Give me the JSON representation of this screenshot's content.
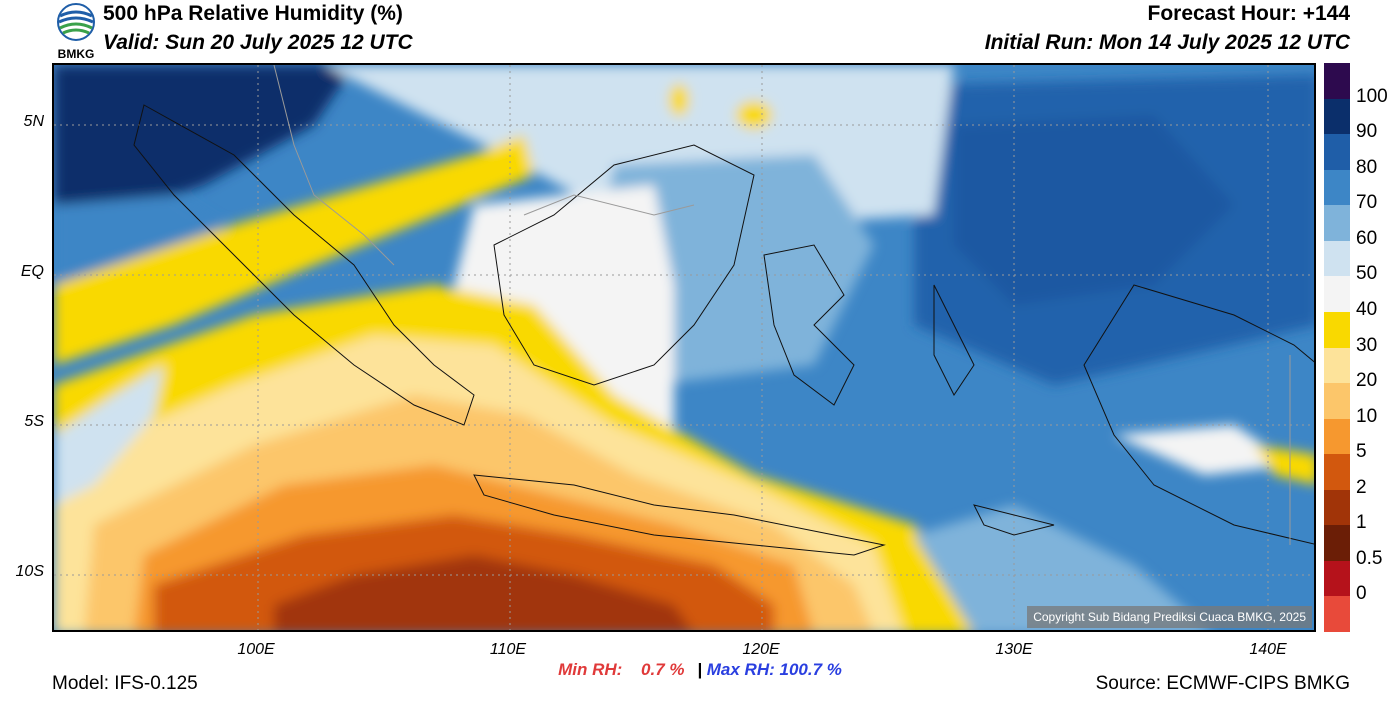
{
  "header": {
    "title": "500 hPa Relative Humidity (%)",
    "valid": "Valid: Sun 20 July 2025 12 UTC",
    "forecast_hour": "Forecast Hour: +144",
    "initial_run": "Initial Run: Mon 14 July 2025 12 UTC",
    "logo_text": "BMKG"
  },
  "map": {
    "lat_labels": [
      "5N",
      "EQ",
      "5S",
      "10S"
    ],
    "lon_labels": [
      "100E",
      "110E",
      "120E",
      "130E",
      "140E"
    ],
    "copyright": "Copyright Sub Bidang Prediksi Cuaca BMKG, 2025"
  },
  "colorbar": {
    "labels": [
      "100",
      "90",
      "80",
      "70",
      "60",
      "50",
      "40",
      "30",
      "20",
      "10",
      "5",
      "2",
      "1",
      "0.5",
      "0"
    ],
    "colors": [
      "#2d0a4e",
      "#0b2f6b",
      "#1f5ea8",
      "#3d86c6",
      "#7fb3da",
      "#cfe2f0",
      "#f4f4f4",
      "#f9d900",
      "#fde39a",
      "#fcc66a",
      "#f6982f",
      "#d2580e",
      "#a13408",
      "#6b1e06",
      "#b5121b",
      "#e84a3a"
    ]
  },
  "stats": {
    "min_label": "Min RH:",
    "min_value": "0.7 %",
    "separator": "|",
    "max_label": "Max RH:",
    "max_value": "100.7 %"
  },
  "footer": {
    "model": "Model: IFS-0.125",
    "source": "Source: ECMWF-CIPS BMKG"
  }
}
